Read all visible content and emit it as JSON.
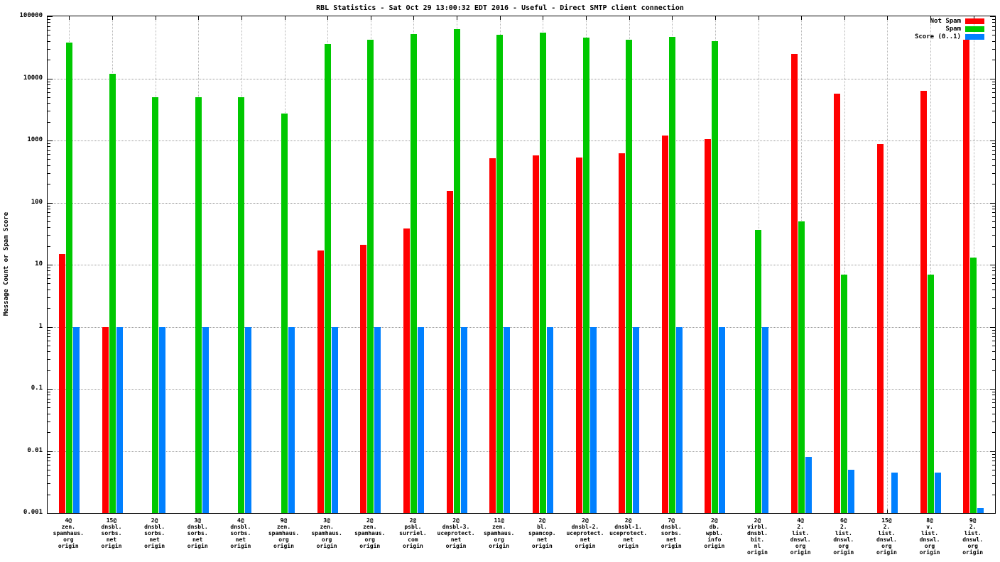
{
  "chart_data": {
    "type": "bar",
    "title": "RBL Statistics - Sat Oct 29 13:00:32 EDT 2016 - Useful - Direct SMTP client connection",
    "ylabel": "Message Count or Spam Score",
    "xlabel": "",
    "y_scale": "log",
    "ylim": [
      0.001,
      100000
    ],
    "y_ticks": [
      "100000",
      "10000",
      "1000",
      "100",
      "10",
      "1",
      "0.1",
      "0.01",
      "0.001"
    ],
    "grid": true,
    "legend_position": "top-right",
    "colors": {
      "background": "#ffffff",
      "axis": "#000000",
      "grid": "#9a9a9a"
    },
    "categories": [
      [
        "4@",
        "zen.",
        "spamhaus.",
        "org",
        "origin"
      ],
      [
        "15@",
        "dnsbl.",
        "sorbs.",
        "net",
        "origin"
      ],
      [
        "2@",
        "dnsbl.",
        "sorbs.",
        "net",
        "origin"
      ],
      [
        "3@",
        "dnsbl.",
        "sorbs.",
        "net",
        "origin"
      ],
      [
        "4@",
        "dnsbl.",
        "sorbs.",
        "net",
        "origin"
      ],
      [
        "9@",
        "zen.",
        "spamhaus.",
        "org",
        "origin"
      ],
      [
        "3@",
        "zen.",
        "spamhaus.",
        "org",
        "origin"
      ],
      [
        "2@",
        "zen.",
        "spamhaus.",
        "org",
        "origin"
      ],
      [
        "2@",
        "psbl.",
        "surriel.",
        "com",
        "origin"
      ],
      [
        "2@",
        "dnsbl-3.",
        "uceprotect.",
        "net",
        "origin"
      ],
      [
        "11@",
        "zen.",
        "spamhaus.",
        "org",
        "origin"
      ],
      [
        "2@",
        "bl.",
        "spamcop.",
        "net",
        "origin"
      ],
      [
        "2@",
        "dnsbl-2.",
        "uceprotect.",
        "net",
        "origin"
      ],
      [
        "2@",
        "dnsbl-1.",
        "uceprotect.",
        "net",
        "origin"
      ],
      [
        "7@",
        "dnsbl.",
        "sorbs.",
        "net",
        "origin"
      ],
      [
        "2@",
        "db.",
        "wpbl.",
        "info",
        "origin"
      ],
      [
        "2@",
        "virbl.",
        "dnsbl.",
        "bit.",
        "nl",
        "origin"
      ],
      [
        "4@",
        "2.",
        "list.",
        "dnswl.",
        "org",
        "origin"
      ],
      [
        "6@",
        "2.",
        "list.",
        "dnswl.",
        "org",
        "origin"
      ],
      [
        "15@",
        "2.",
        "list.",
        "dnswl.",
        "org",
        "origin"
      ],
      [
        "8@",
        "v.",
        "list.",
        "dnswl.",
        "org",
        "origin"
      ],
      [
        "9@",
        "2.",
        "list.",
        "dnswl.",
        "org",
        "origin"
      ]
    ],
    "series": [
      {
        "name": "Not Spam",
        "color": "#ff0000",
        "values": [
          15,
          1,
          null,
          null,
          null,
          null,
          17,
          21,
          38,
          155,
          520,
          580,
          530,
          620,
          1200,
          1050,
          null,
          25000,
          5700,
          870,
          6400,
          42000
        ]
      },
      {
        "name": "Spam",
        "color": "#00c800",
        "values": [
          38000,
          12000,
          5000,
          5000,
          5000,
          2700,
          36000,
          42000,
          52000,
          63000,
          50000,
          55000,
          45000,
          42000,
          47000,
          40000,
          36,
          50,
          7,
          null,
          7,
          13
        ]
      },
      {
        "name": "Score (0..1)",
        "color": "#0080ff",
        "values": [
          1,
          1,
          1,
          1,
          1,
          1,
          1,
          1,
          1,
          1,
          1,
          1,
          1,
          1,
          1,
          1,
          1,
          0.008,
          0.005,
          0.0045,
          0.0045,
          0.0012
        ]
      }
    ]
  }
}
